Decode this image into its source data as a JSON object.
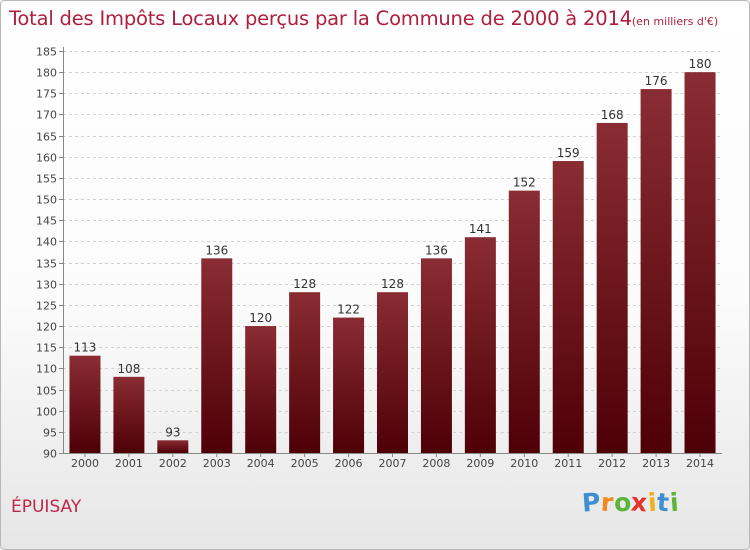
{
  "header": {
    "title": "Total des Impôts Locaux perçus par la Commune de 2000 à 2014",
    "unit": "(en milliers d'€)"
  },
  "commune": "ÉPUISAY",
  "logo": {
    "letters": [
      "P",
      "r",
      "o",
      "x",
      "i",
      "t",
      "i"
    ],
    "colors": [
      "#3f8fd0",
      "#f08a1c",
      "#5bb53b",
      "#e8332a",
      "#f0b21c",
      "#3f8fd0",
      "#5bb53b"
    ]
  },
  "chart_data": {
    "type": "bar",
    "title": "Total des Impôts Locaux perçus par la Commune de 2000 à 2014",
    "ylabel": "en milliers d'€",
    "xlabel": "",
    "categories": [
      "2000",
      "2001",
      "2002",
      "2003",
      "2004",
      "2005",
      "2006",
      "2007",
      "2008",
      "2009",
      "2010",
      "2011",
      "2012",
      "2013",
      "2014"
    ],
    "values": [
      113,
      108,
      93,
      136,
      120,
      128,
      122,
      128,
      136,
      141,
      152,
      159,
      168,
      176,
      180
    ],
    "ylim": [
      90,
      185
    ],
    "ytick_step": 5,
    "bar_color": "#6b0f1a",
    "grid": true
  }
}
